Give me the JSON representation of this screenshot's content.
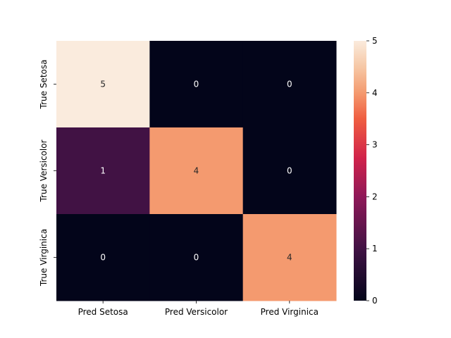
{
  "chart_data": {
    "type": "heatmap",
    "title": "",
    "xlabel": "",
    "ylabel": "",
    "x_categories": [
      "Pred Setosa",
      "Pred Versicolor",
      "Pred Virginica"
    ],
    "y_categories": [
      "True Setosa",
      "True Versicolor",
      "True Virginica"
    ],
    "values": [
      [
        5,
        0,
        0
      ],
      [
        1,
        4,
        0
      ],
      [
        0,
        0,
        4
      ]
    ],
    "value_range": [
      0,
      5
    ],
    "colormap": "rocket",
    "colorbar": {
      "ticks": [
        "0",
        "1",
        "2",
        "3",
        "4",
        "5"
      ],
      "tick_values": [
        0,
        1,
        2,
        3,
        4,
        5
      ],
      "placement": "right"
    },
    "annotation_colors": {
      "on_dark": "#ffffff",
      "on_light": "#262626"
    },
    "grid": false
  }
}
